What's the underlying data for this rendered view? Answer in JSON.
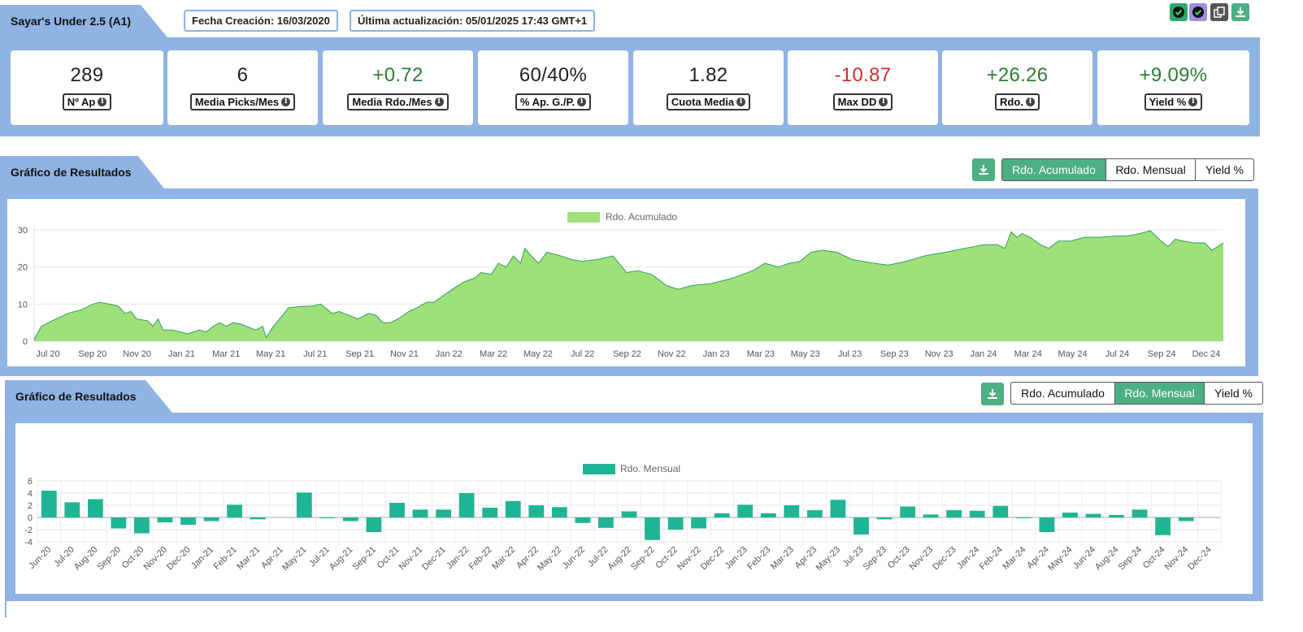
{
  "header": {
    "title": "Sayar's Under 2.5 (A1)",
    "created": "Fecha Creación: 16/03/2020",
    "updated": "Última actualización: 05/01/2025 17:43 GMT+1"
  },
  "top_icons": [
    {
      "name": "check-green-icon",
      "color": "#2fa86a"
    },
    {
      "name": "check-purple-icon",
      "color": "#9b8fe0"
    },
    {
      "name": "copy-icon",
      "color": "#555555"
    },
    {
      "name": "download-icon",
      "color": "#4cb083"
    }
  ],
  "stats": [
    {
      "value": "289",
      "label": "Nº Ap",
      "tone": "neu"
    },
    {
      "value": "6",
      "label": "Media Picks/Mes",
      "tone": "neu"
    },
    {
      "value": "+0.72",
      "label": "Media Rdo./Mes",
      "tone": "pos"
    },
    {
      "value": "60/40%",
      "label": "% Ap. G./P.",
      "tone": "neu"
    },
    {
      "value": "1.82",
      "label": "Cuota Media",
      "tone": "neu"
    },
    {
      "value": "-10.87",
      "label": "Max DD",
      "tone": "neg"
    },
    {
      "value": "+26.26",
      "label": "Rdo.",
      "tone": "pos"
    },
    {
      "value": "+9.09%",
      "label": "Yield %",
      "tone": "pos"
    }
  ],
  "section1": {
    "title": "Gráfico de Resultados",
    "buttons": [
      "Rdo. Acumulado",
      "Rdo. Mensual",
      "Yield %"
    ],
    "active": 0
  },
  "section2": {
    "title": "Gráfico de Resultados",
    "buttons": [
      "Rdo. Acumulado",
      "Rdo. Mensual",
      "Yield %"
    ],
    "active": 1
  },
  "colors": {
    "panel": "#8fb3e3",
    "accent": "#4cb083",
    "area_fill": "#9fe07a",
    "area_line": "#2f9f60",
    "bar": "#1fb594",
    "positive": "#2e7d32",
    "negative": "#d32f2f"
  },
  "chart_data": [
    {
      "type": "area",
      "legend": "Rdo. Acumulado",
      "x_ticks": [
        "Jul 20",
        "Sep 20",
        "Nov 20",
        "Jan 21",
        "Mar 21",
        "May 21",
        "Jul 21",
        "Sep 21",
        "Nov 21",
        "Jan 22",
        "Mar 22",
        "May 22",
        "Jul 22",
        "Sep 22",
        "Nov 22",
        "Jan 23",
        "Mar 23",
        "May 23",
        "Jul 23",
        "Sep 23",
        "Nov 23",
        "Jan 24",
        "Mar 24",
        "May 24",
        "Jul 24",
        "Sep 24",
        "Dec 24"
      ],
      "y_ticks": [
        0,
        10,
        20,
        30
      ],
      "ylim": [
        0,
        30
      ],
      "points": [
        [
          "2020-06-15",
          0.5
        ],
        [
          "2020-06-25",
          4
        ],
        [
          "2020-07-10",
          5.5
        ],
        [
          "2020-08-01",
          7.5
        ],
        [
          "2020-08-20",
          8.5
        ],
        [
          "2020-09-05",
          10
        ],
        [
          "2020-09-15",
          10.5
        ],
        [
          "2020-10-10",
          9.5
        ],
        [
          "2020-10-20",
          7.5
        ],
        [
          "2020-10-28",
          8
        ],
        [
          "2020-11-05",
          6
        ],
        [
          "2020-11-20",
          5.5
        ],
        [
          "2020-11-28",
          4
        ],
        [
          "2020-12-05",
          6
        ],
        [
          "2020-12-12",
          3
        ],
        [
          "2020-12-25",
          3
        ],
        [
          "2021-01-15",
          2
        ],
        [
          "2021-02-01",
          3
        ],
        [
          "2021-02-10",
          2.5
        ],
        [
          "2021-02-20",
          4
        ],
        [
          "2021-03-01",
          5
        ],
        [
          "2021-03-10",
          4
        ],
        [
          "2021-03-20",
          5
        ],
        [
          "2021-04-01",
          4.5
        ],
        [
          "2021-04-20",
          3
        ],
        [
          "2021-04-30",
          4
        ],
        [
          "2021-05-05",
          1
        ],
        [
          "2021-05-15",
          4
        ],
        [
          "2021-05-28",
          7
        ],
        [
          "2021-06-05",
          9
        ],
        [
          "2021-06-20",
          9.3
        ],
        [
          "2021-07-10",
          9.5
        ],
        [
          "2021-07-20",
          10
        ],
        [
          "2021-08-05",
          7.5
        ],
        [
          "2021-08-15",
          8
        ],
        [
          "2021-08-28",
          7
        ],
        [
          "2021-09-10",
          6
        ],
        [
          "2021-09-25",
          7.5
        ],
        [
          "2021-10-05",
          7
        ],
        [
          "2021-10-15",
          5
        ],
        [
          "2021-10-25",
          5
        ],
        [
          "2021-11-05",
          6
        ],
        [
          "2021-11-20",
          8
        ],
        [
          "2021-12-01",
          9
        ],
        [
          "2021-12-15",
          10.5
        ],
        [
          "2021-12-25",
          10.5
        ],
        [
          "2022-01-05",
          12
        ],
        [
          "2022-01-20",
          14
        ],
        [
          "2022-02-05",
          16
        ],
        [
          "2022-02-20",
          17
        ],
        [
          "2022-03-01",
          18.5
        ],
        [
          "2022-03-15",
          18
        ],
        [
          "2022-03-25",
          21
        ],
        [
          "2022-04-05",
          20
        ],
        [
          "2022-04-15",
          23
        ],
        [
          "2022-04-25",
          21
        ],
        [
          "2022-05-01",
          25
        ],
        [
          "2022-05-10",
          23
        ],
        [
          "2022-05-20",
          21
        ],
        [
          "2022-06-01",
          24
        ],
        [
          "2022-06-20",
          23
        ],
        [
          "2022-07-05",
          22
        ],
        [
          "2022-07-20",
          21.5
        ],
        [
          "2022-08-10",
          22
        ],
        [
          "2022-09-01",
          23
        ],
        [
          "2022-09-20",
          18.5
        ],
        [
          "2022-10-05",
          19
        ],
        [
          "2022-10-25",
          18
        ],
        [
          "2022-11-15",
          15
        ],
        [
          "2022-12-01",
          14
        ],
        [
          "2022-12-20",
          15
        ],
        [
          "2023-01-15",
          15.5
        ],
        [
          "2023-02-05",
          16.5
        ],
        [
          "2023-02-15",
          17
        ],
        [
          "2023-03-01",
          18
        ],
        [
          "2023-03-15",
          19
        ],
        [
          "2023-04-01",
          21
        ],
        [
          "2023-04-20",
          20
        ],
        [
          "2023-05-05",
          21
        ],
        [
          "2023-05-20",
          21.5
        ],
        [
          "2023-06-05",
          24
        ],
        [
          "2023-06-20",
          24.5
        ],
        [
          "2023-07-10",
          24
        ],
        [
          "2023-08-01",
          22
        ],
        [
          "2023-09-01",
          21
        ],
        [
          "2023-09-20",
          20.5
        ],
        [
          "2023-10-15",
          21.5
        ],
        [
          "2023-11-10",
          23
        ],
        [
          "2023-12-10",
          24
        ],
        [
          "2024-01-05",
          25
        ],
        [
          "2024-02-01",
          26
        ],
        [
          "2024-02-20",
          26
        ],
        [
          "2024-03-01",
          25
        ],
        [
          "2024-03-10",
          29.5
        ],
        [
          "2024-03-18",
          28
        ],
        [
          "2024-03-25",
          29
        ],
        [
          "2024-04-05",
          28
        ],
        [
          "2024-04-20",
          26
        ],
        [
          "2024-05-01",
          25
        ],
        [
          "2024-05-15",
          27
        ],
        [
          "2024-06-01",
          27
        ],
        [
          "2024-06-20",
          28
        ],
        [
          "2024-07-10",
          28
        ],
        [
          "2024-08-01",
          28.3
        ],
        [
          "2024-08-20",
          28.4
        ],
        [
          "2024-09-05",
          29
        ],
        [
          "2024-09-20",
          29.8
        ],
        [
          "2024-10-05",
          27
        ],
        [
          "2024-10-15",
          25.5
        ],
        [
          "2024-10-25",
          27.5
        ],
        [
          "2024-11-05",
          27
        ],
        [
          "2024-11-20",
          26.5
        ],
        [
          "2024-12-05",
          26.5
        ],
        [
          "2024-12-15",
          24.5
        ],
        [
          "2024-12-31",
          26.5
        ]
      ]
    },
    {
      "type": "bar",
      "legend": "Rdo. Mensual",
      "y_ticks": [
        6,
        4,
        2,
        0,
        -2,
        -4
      ],
      "ylim": [
        -4,
        6
      ],
      "categories": [
        "Jun-20",
        "Jul-20",
        "Aug-20",
        "Sep-20",
        "Oct-20",
        "Nov-20",
        "Dec-20",
        "Jan-21",
        "Feb-21",
        "Mar-21",
        "Apr-21",
        "May-21",
        "Jul-21",
        "Aug-21",
        "Sep-21",
        "Oct-21",
        "Nov-21",
        "Dec-21",
        "Jan-22",
        "Feb-22",
        "Mar-22",
        "Apr-22",
        "May-22",
        "Jun-22",
        "Jul-22",
        "Aug-22",
        "Sep-22",
        "Oct-22",
        "Nov-22",
        "Dec-22",
        "Jan-23",
        "Feb-23",
        "Mar-23",
        "Apr-23",
        "May-23",
        "Jul-23",
        "Sep-23",
        "Oct-23",
        "Nov-23",
        "Dec-23",
        "Jan-24",
        "Feb-24",
        "Mar-24",
        "Apr-24",
        "May-24",
        "Jun-24",
        "Aug-24",
        "Sep-24",
        "Oct-24",
        "Nov-24",
        "Dec-24"
      ],
      "values": [
        4.4,
        2.5,
        3.0,
        -1.8,
        -2.6,
        -0.8,
        -1.2,
        -0.6,
        2.1,
        -0.3,
        0,
        4.1,
        -0.1,
        -0.6,
        -2.4,
        2.4,
        1.3,
        1.3,
        4.0,
        1.6,
        2.7,
        2.0,
        1.7,
        -0.9,
        -1.7,
        1.0,
        -3.7,
        -2.0,
        -1.8,
        0.7,
        2.1,
        0.7,
        2.0,
        1.2,
        2.9,
        -2.8,
        -0.3,
        1.8,
        0.5,
        1.2,
        1.1,
        1.9,
        -0.1,
        -2.4,
        0.8,
        0.6,
        0.4,
        1.3,
        -2.9,
        -0.6,
        0
      ]
    }
  ]
}
